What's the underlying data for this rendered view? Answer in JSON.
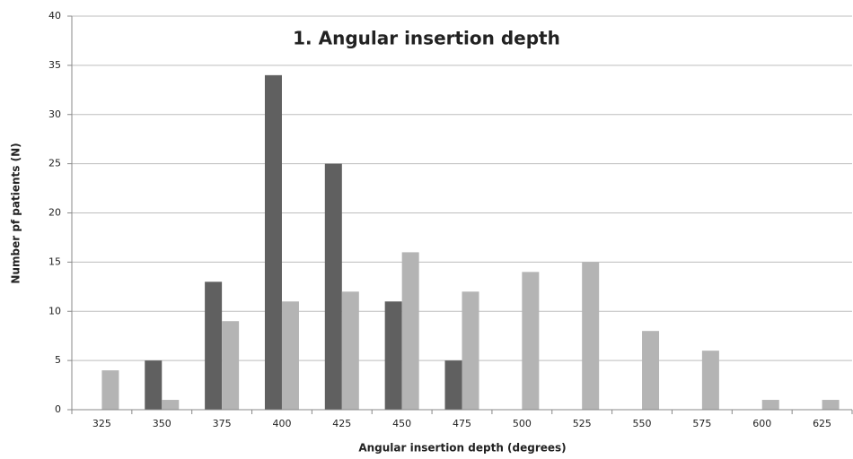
{
  "chart_data": {
    "type": "bar",
    "title": "1. Angular insertion depth",
    "x_label": "Angular insertion depth (degrees)",
    "y_label": "Number pf patients (N)",
    "categories": [
      "325",
      "350",
      "375",
      "400",
      "425",
      "450",
      "475",
      "500",
      "525",
      "550",
      "575",
      "600",
      "625"
    ],
    "series": [
      {
        "color": "#606060",
        "values": [
          0,
          5,
          13,
          34,
          25,
          11,
          5,
          0,
          0,
          0,
          0,
          0,
          0
        ]
      },
      {
        "color": "#b4b4b4",
        "values": [
          4,
          1,
          9,
          11,
          12,
          16,
          12,
          14,
          15,
          8,
          6,
          1,
          1
        ]
      }
    ],
    "ylim": [
      0,
      40
    ],
    "yticks": [
      0,
      5,
      10,
      15,
      20,
      25,
      30,
      35,
      40
    ],
    "grid": true
  }
}
